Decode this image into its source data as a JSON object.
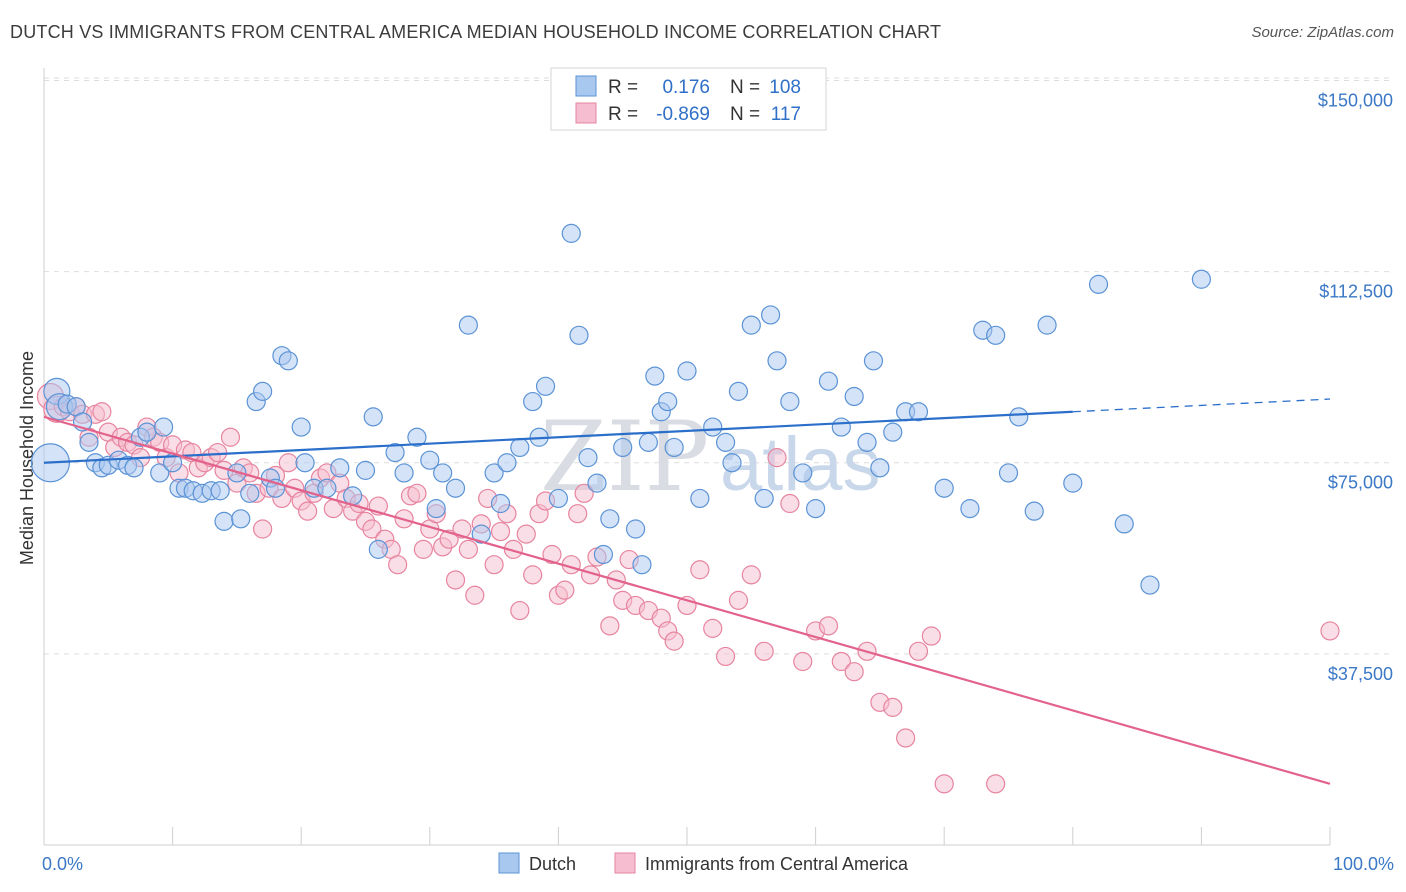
{
  "title": "DUTCH VS IMMIGRANTS FROM CENTRAL AMERICA MEDIAN HOUSEHOLD INCOME CORRELATION CHART",
  "source": "Source: ZipAtlas.com",
  "watermark": {
    "zip": "ZIP",
    "atlas": "atlas"
  },
  "colors": {
    "dutch_fill": "#a9c8ef",
    "dutch_stroke": "#5b93d6",
    "dutch_line": "#2b6fcb",
    "imm_fill": "#f6bdd0",
    "imm_stroke": "#e7849f",
    "imm_line": "#e2628c",
    "grid": "#dddddd",
    "axis_text": "#3b78c6"
  },
  "legend": {
    "rows": [
      {
        "r_label": "R =",
        "r_value": "0.176",
        "n_label": "N =",
        "n_value": "108"
      },
      {
        "r_label": "R =",
        "r_value": "-0.869",
        "n_label": "N =",
        "n_value": "117"
      }
    ]
  },
  "bottom_legend": [
    "Dutch",
    "Immigrants from Central America"
  ],
  "chart_data": {
    "type": "scatter",
    "title": "DUTCH VS IMMIGRANTS FROM CENTRAL AMERICA MEDIAN HOUSEHOLD INCOME CORRELATION CHART",
    "xlabel": "",
    "ylabel": "Median Household Income",
    "xlim": [
      0,
      100
    ],
    "ylim": [
      0,
      155000
    ],
    "x_tick_labels": [
      "0.0%",
      "100.0%"
    ],
    "y_ticks": [
      37500,
      75000,
      112500,
      150000
    ],
    "y_tick_labels": [
      "$37,500",
      "$75,000",
      "$112,500",
      "$150,000"
    ],
    "legend_position": "top-center",
    "series": [
      {
        "name": "Dutch",
        "R": 0.176,
        "N": 108,
        "trend": {
          "x0": 0,
          "y0": 75000,
          "x1": 80,
          "y1": 85000,
          "dash_to_x": 100,
          "dash_to_y": 87500
        },
        "points": [
          [
            0.5,
            75000,
            3
          ],
          [
            1,
            89000,
            2
          ],
          [
            1.2,
            86000,
            2
          ],
          [
            1.8,
            86500,
            1
          ],
          [
            2.5,
            86000,
            1
          ],
          [
            3,
            83000,
            1
          ],
          [
            3.5,
            79000,
            1
          ],
          [
            4,
            75000,
            1
          ],
          [
            4.5,
            74000,
            1
          ],
          [
            5,
            74500,
            1
          ],
          [
            5.8,
            75500,
            1
          ],
          [
            6.5,
            74500,
            1
          ],
          [
            7,
            74000,
            1
          ],
          [
            7.5,
            80000,
            1
          ],
          [
            8,
            81000,
            1
          ],
          [
            9,
            73000,
            1
          ],
          [
            9.3,
            82000,
            1
          ],
          [
            10,
            75000,
            1
          ],
          [
            10.5,
            70000,
            1
          ],
          [
            11,
            70000,
            1
          ],
          [
            11.6,
            69500,
            1
          ],
          [
            12.3,
            69000,
            1
          ],
          [
            13,
            69500,
            1
          ],
          [
            13.7,
            69500,
            1
          ],
          [
            14,
            63500,
            1
          ],
          [
            15,
            73000,
            1
          ],
          [
            15.3,
            64000,
            1
          ],
          [
            16,
            69000,
            1
          ],
          [
            16.5,
            87000,
            1
          ],
          [
            17,
            89000,
            1
          ],
          [
            17.6,
            72000,
            1
          ],
          [
            18,
            70000,
            1
          ],
          [
            18.5,
            96000,
            1
          ],
          [
            19,
            95000,
            1
          ],
          [
            20,
            82000,
            1
          ],
          [
            20.3,
            75000,
            1
          ],
          [
            21,
            70000,
            1
          ],
          [
            22,
            70000,
            1
          ],
          [
            23,
            74000,
            1
          ],
          [
            24,
            68500,
            1
          ],
          [
            25,
            73500,
            1
          ],
          [
            25.6,
            84000,
            1
          ],
          [
            26,
            58000,
            1
          ],
          [
            27.3,
            77000,
            1
          ],
          [
            28,
            73000,
            1
          ],
          [
            29,
            80000,
            1
          ],
          [
            30,
            75500,
            1
          ],
          [
            30.5,
            66000,
            1
          ],
          [
            31,
            73000,
            1
          ],
          [
            32,
            70000,
            1
          ],
          [
            33,
            102000,
            1
          ],
          [
            34,
            61000,
            1
          ],
          [
            35,
            73000,
            1
          ],
          [
            35.5,
            67000,
            1
          ],
          [
            36,
            75000,
            1
          ],
          [
            37,
            78000,
            1
          ],
          [
            38,
            87000,
            1
          ],
          [
            38.5,
            80000,
            1
          ],
          [
            39,
            90000,
            1
          ],
          [
            40,
            68000,
            1
          ],
          [
            41,
            120000,
            1
          ],
          [
            41.6,
            100000,
            1
          ],
          [
            42.3,
            76000,
            1
          ],
          [
            43,
            71000,
            1
          ],
          [
            43.5,
            57000,
            1
          ],
          [
            44,
            64000,
            1
          ],
          [
            45,
            78000,
            1
          ],
          [
            46,
            62000,
            1
          ],
          [
            46.5,
            55000,
            1
          ],
          [
            47,
            79000,
            1
          ],
          [
            47.5,
            92000,
            1
          ],
          [
            48,
            85000,
            1
          ],
          [
            48.5,
            87000,
            1
          ],
          [
            49,
            78000,
            1
          ],
          [
            50,
            93000,
            1
          ],
          [
            51,
            68000,
            1
          ],
          [
            52,
            82000,
            1
          ],
          [
            53,
            79000,
            1
          ],
          [
            53.5,
            75000,
            1
          ],
          [
            54,
            89000,
            1
          ],
          [
            55,
            102000,
            1
          ],
          [
            56,
            68000,
            1
          ],
          [
            56.5,
            104000,
            1
          ],
          [
            57,
            95000,
            1
          ],
          [
            58,
            87000,
            1
          ],
          [
            59,
            73000,
            1
          ],
          [
            60,
            66000,
            1
          ],
          [
            61,
            91000,
            1
          ],
          [
            62,
            82000,
            1
          ],
          [
            63,
            88000,
            1
          ],
          [
            64,
            79000,
            1
          ],
          [
            64.5,
            95000,
            1
          ],
          [
            65,
            74000,
            1
          ],
          [
            66,
            81000,
            1
          ],
          [
            67,
            85000,
            1
          ],
          [
            68,
            85000,
            1
          ],
          [
            70,
            70000,
            1
          ],
          [
            72,
            66000,
            1
          ],
          [
            73,
            101000,
            1
          ],
          [
            74,
            100000,
            1
          ],
          [
            75,
            73000,
            1
          ],
          [
            75.8,
            84000,
            1
          ],
          [
            77,
            65500,
            1
          ],
          [
            78,
            102000,
            1
          ],
          [
            80,
            71000,
            1
          ],
          [
            82,
            110000,
            1
          ],
          [
            84,
            63000,
            1
          ],
          [
            86,
            51000,
            1
          ],
          [
            90,
            111000,
            1
          ]
        ]
      },
      {
        "name": "Immigrants from Central America",
        "R": -0.869,
        "N": 117,
        "trend": {
          "x0": 0,
          "y0": 84000,
          "x1": 100,
          "y1": 12000
        },
        "points": [
          [
            0.5,
            88000,
            2
          ],
          [
            1,
            85500,
            2
          ],
          [
            1.5,
            86000,
            1
          ],
          [
            2,
            85000,
            1
          ],
          [
            2.5,
            86000,
            1
          ],
          [
            3,
            84500,
            1
          ],
          [
            3.5,
            80000,
            1
          ],
          [
            4,
            84500,
            1
          ],
          [
            4.5,
            85000,
            1
          ],
          [
            5,
            81000,
            1
          ],
          [
            5.5,
            78000,
            1
          ],
          [
            6,
            80000,
            1
          ],
          [
            6.5,
            79000,
            1
          ],
          [
            7,
            78500,
            1
          ],
          [
            7.5,
            76000,
            1
          ],
          [
            8,
            82000,
            1
          ],
          [
            8.5,
            80000,
            1
          ],
          [
            9,
            79000,
            1
          ],
          [
            9.5,
            76000,
            1
          ],
          [
            10,
            78500,
            1
          ],
          [
            10.5,
            73000,
            1
          ],
          [
            11,
            77500,
            1
          ],
          [
            11.5,
            77000,
            1
          ],
          [
            12,
            74000,
            1
          ],
          [
            12.5,
            75000,
            1
          ],
          [
            13,
            76000,
            1
          ],
          [
            13.5,
            77000,
            1
          ],
          [
            14,
            73500,
            1
          ],
          [
            14.5,
            80000,
            1
          ],
          [
            15,
            71000,
            1
          ],
          [
            15.5,
            74000,
            1
          ],
          [
            16,
            73000,
            1
          ],
          [
            16.5,
            69000,
            1
          ],
          [
            17,
            62000,
            1
          ],
          [
            17.5,
            70000,
            1
          ],
          [
            18,
            72500,
            1
          ],
          [
            18.5,
            68000,
            1
          ],
          [
            19,
            75000,
            1
          ],
          [
            19.5,
            70000,
            1
          ],
          [
            20,
            67500,
            1
          ],
          [
            20.5,
            65500,
            1
          ],
          [
            21,
            69000,
            1
          ],
          [
            21.5,
            72000,
            1
          ],
          [
            22,
            73000,
            1
          ],
          [
            22.5,
            66000,
            1
          ],
          [
            23,
            71000,
            1
          ],
          [
            23.5,
            68000,
            1
          ],
          [
            24,
            65500,
            1
          ],
          [
            24.5,
            67000,
            1
          ],
          [
            25,
            63500,
            1
          ],
          [
            25.5,
            62000,
            1
          ],
          [
            26,
            66500,
            1
          ],
          [
            26.5,
            60000,
            1
          ],
          [
            27,
            58000,
            1
          ],
          [
            27.5,
            55000,
            1
          ],
          [
            28,
            64000,
            1
          ],
          [
            28.5,
            68500,
            1
          ],
          [
            29,
            69000,
            1
          ],
          [
            29.5,
            58000,
            1
          ],
          [
            30,
            62000,
            1
          ],
          [
            30.5,
            65000,
            1
          ],
          [
            31,
            58500,
            1
          ],
          [
            31.5,
            60000,
            1
          ],
          [
            32,
            52000,
            1
          ],
          [
            32.5,
            62000,
            1
          ],
          [
            33,
            58000,
            1
          ],
          [
            33.5,
            49000,
            1
          ],
          [
            34,
            63000,
            1
          ],
          [
            34.5,
            68000,
            1
          ],
          [
            35,
            55000,
            1
          ],
          [
            35.5,
            61500,
            1
          ],
          [
            36,
            65000,
            1
          ],
          [
            36.5,
            58000,
            1
          ],
          [
            37,
            46000,
            1
          ],
          [
            37.5,
            61000,
            1
          ],
          [
            38,
            53000,
            1
          ],
          [
            38.5,
            65000,
            1
          ],
          [
            39,
            67500,
            1
          ],
          [
            39.5,
            57000,
            1
          ],
          [
            40,
            49000,
            1
          ],
          [
            40.5,
            50000,
            1
          ],
          [
            41,
            55000,
            1
          ],
          [
            41.5,
            65000,
            1
          ],
          [
            42,
            69000,
            1
          ],
          [
            42.5,
            53000,
            1
          ],
          [
            43,
            56500,
            1
          ],
          [
            44,
            43000,
            1
          ],
          [
            44.5,
            52000,
            1
          ],
          [
            45,
            48000,
            1
          ],
          [
            45.5,
            56000,
            1
          ],
          [
            46,
            47000,
            1
          ],
          [
            47,
            46000,
            1
          ],
          [
            48,
            44500,
            1
          ],
          [
            48.5,
            42000,
            1
          ],
          [
            49,
            40000,
            1
          ],
          [
            50,
            47000,
            1
          ],
          [
            51,
            54000,
            1
          ],
          [
            52,
            42500,
            1
          ],
          [
            53,
            37000,
            1
          ],
          [
            54,
            48000,
            1
          ],
          [
            55,
            53000,
            1
          ],
          [
            56,
            38000,
            1
          ],
          [
            57,
            76000,
            1
          ],
          [
            58,
            67000,
            1
          ],
          [
            59,
            36000,
            1
          ],
          [
            60,
            42000,
            1
          ],
          [
            61,
            43000,
            1
          ],
          [
            62,
            36000,
            1
          ],
          [
            63,
            34000,
            1
          ],
          [
            64,
            38000,
            1
          ],
          [
            65,
            28000,
            1
          ],
          [
            66,
            27000,
            1
          ],
          [
            67,
            21000,
            1
          ],
          [
            68,
            38000,
            1
          ],
          [
            69,
            41000,
            1
          ],
          [
            70,
            12000,
            1
          ],
          [
            74,
            12000,
            1
          ],
          [
            100,
            42000,
            1
          ]
        ]
      }
    ]
  }
}
